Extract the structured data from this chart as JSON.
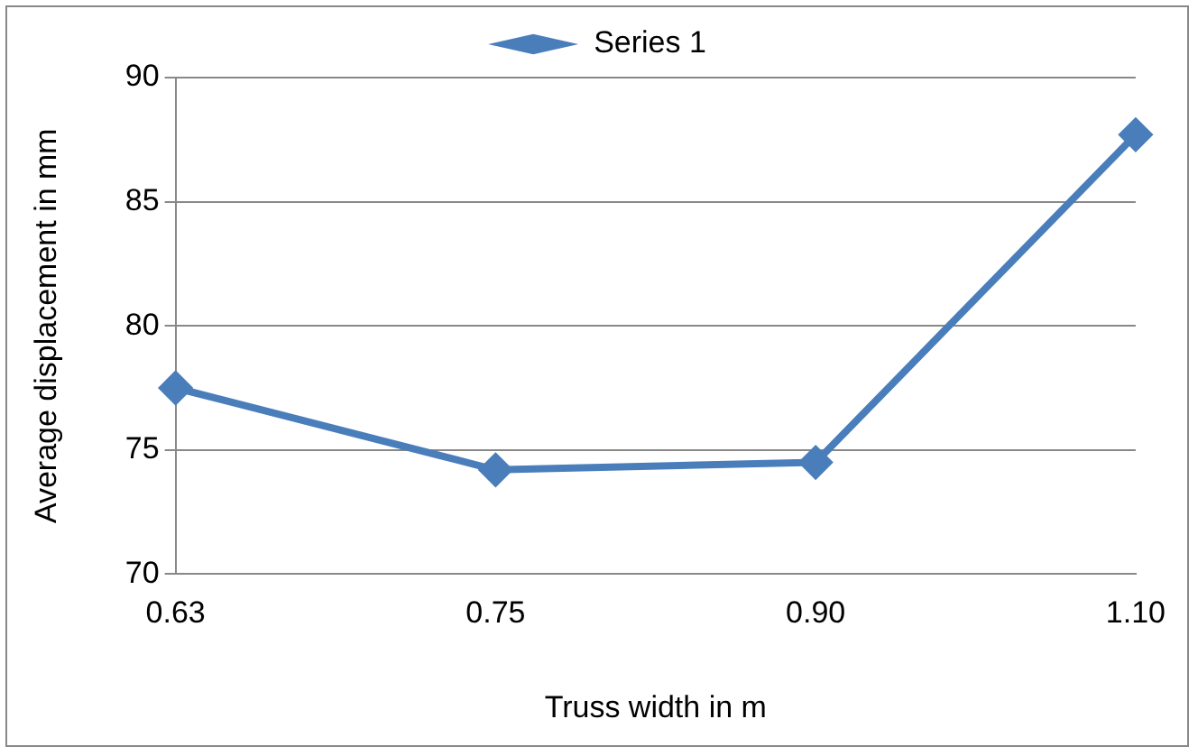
{
  "chart_data": {
    "type": "line",
    "xlabel": "Truss width in m",
    "ylabel": "Average displacement in mm",
    "categories": [
      "0.63",
      "0.75",
      "0.90",
      "1.10"
    ],
    "series": [
      {
        "name": "Series 1",
        "color": "#4a7ebb",
        "values": [
          77.5,
          74.2,
          74.5,
          87.7
        ]
      }
    ],
    "ylim": [
      70,
      90
    ],
    "yticks": [
      70,
      75,
      80,
      85,
      90
    ],
    "grid": "y",
    "legend": "top",
    "marker": "diamond",
    "line_style": "solid"
  }
}
